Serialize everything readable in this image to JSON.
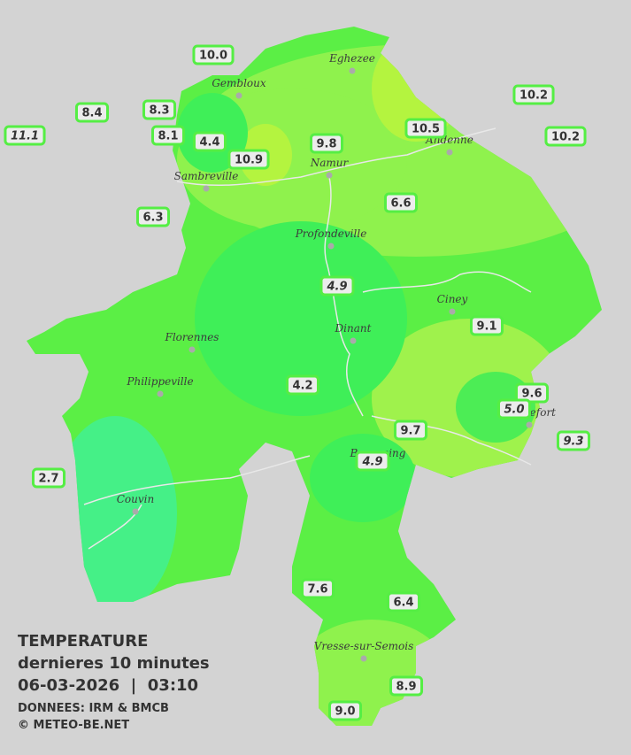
{
  "legend": {
    "title": "TEMPERATURE",
    "subtitle": "dernieres 10 minutes",
    "datetime": "06-03-2026  |  03:10",
    "source": "DONNEES: IRM & BMCB",
    "copyright": "© METEO-BE.NET"
  },
  "towns": [
    "Eghezee",
    "Gembloux",
    "Andenne",
    "Namur",
    "Sambreville",
    "Profondeville",
    "Ciney",
    "Dinant",
    "Florennes",
    "Philippeville",
    "Rochefort",
    "Beauraing",
    "Couvin",
    "Vresse-sur-Semois"
  ],
  "stations": [
    {
      "value": "10.0",
      "italic": false
    },
    {
      "value": "8.4",
      "italic": false
    },
    {
      "value": "8.3",
      "italic": false
    },
    {
      "value": "11.1",
      "italic": true
    },
    {
      "value": "8.1",
      "italic": false
    },
    {
      "value": "4.4",
      "italic": false
    },
    {
      "value": "10.9",
      "italic": false
    },
    {
      "value": "9.8",
      "italic": false
    },
    {
      "value": "10.5",
      "italic": false
    },
    {
      "value": "10.2",
      "italic": false
    },
    {
      "value": "10.2",
      "italic": false
    },
    {
      "value": "6.3",
      "italic": false
    },
    {
      "value": "6.6",
      "italic": false
    },
    {
      "value": "4.9",
      "italic": true
    },
    {
      "value": "9.1",
      "italic": false
    },
    {
      "value": "4.2",
      "italic": false
    },
    {
      "value": "9.6",
      "italic": false
    },
    {
      "value": "5.0",
      "italic": true
    },
    {
      "value": "9.3",
      "italic": true
    },
    {
      "value": "9.7",
      "italic": false
    },
    {
      "value": "4.9",
      "italic": true
    },
    {
      "value": "2.7",
      "italic": false
    },
    {
      "value": "7.6",
      "italic": false
    },
    {
      "value": "6.4",
      "italic": false
    },
    {
      "value": "8.9",
      "italic": false
    },
    {
      "value": "9.0",
      "italic": false
    }
  ]
}
